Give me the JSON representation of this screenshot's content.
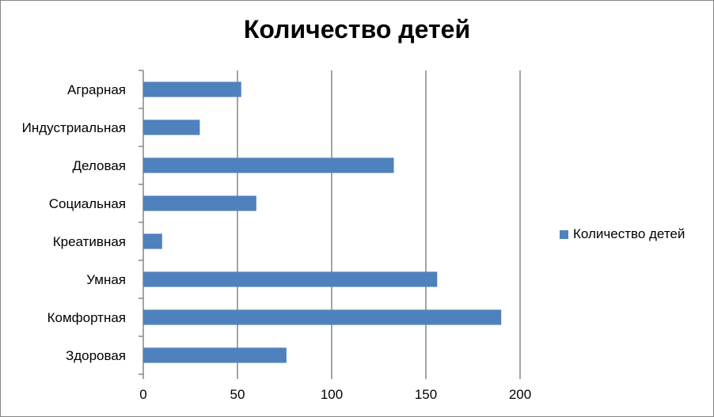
{
  "chart_data": {
    "type": "bar",
    "orientation": "horizontal",
    "title": "Количество детей",
    "categories": [
      "Аграрная",
      "Индустриальная",
      "Деловая",
      "Социальная",
      "Креативная",
      "Умная",
      "Комфортная",
      "Здоровая"
    ],
    "series": [
      {
        "name": "Количество детей",
        "color": "#4F81BD",
        "values": [
          52,
          30,
          133,
          60,
          10,
          156,
          190,
          76
        ]
      }
    ],
    "xlim": [
      0,
      200
    ],
    "xticks": [
      "0",
      "50",
      "100",
      "150",
      "200"
    ],
    "grid": "vertical",
    "legend": "right"
  }
}
